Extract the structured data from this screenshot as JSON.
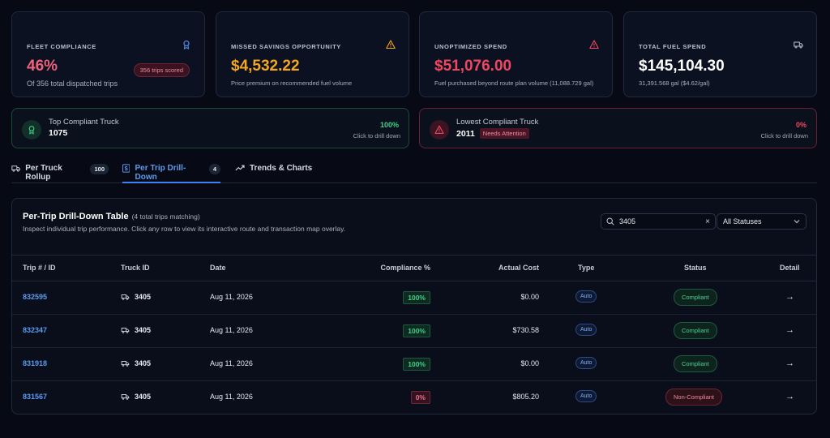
{
  "kpis": [
    {
      "title": "FLEET COMPLIANCE",
      "value": "46%",
      "value_color": "#f0617c",
      "sub": "Of 356 total dispatched trips",
      "pill": "356 trips scored",
      "icon": "award-icon",
      "icon_color": "#4f8ef0"
    },
    {
      "title": "MISSED SAVINGS OPPORTUNITY",
      "value": "$4,532.22",
      "value_color": "#f5a524",
      "sub": "Price premium on recommended fuel volume",
      "icon": "warning-icon",
      "icon_color": "#f5a524"
    },
    {
      "title": "UNOPTIMIZED SPEND",
      "value": "$51,076.00",
      "value_color": "#f04660",
      "sub": "Fuel purchased beyond route plan volume (11,088.729 gal)",
      "icon": "alert-icon",
      "icon_color": "#f04660"
    },
    {
      "title": "TOTAL FUEL SPEND",
      "value": "$145,104.30",
      "value_color": "#ffffff",
      "sub": "31,391.568 gal ($4.62/gal)",
      "icon": "truck-icon",
      "icon_color": "#b9c0cf"
    }
  ],
  "top_truck": {
    "label": "Top Compliant Truck",
    "name": "1075",
    "pct": "100%",
    "hint": "Click to drill down"
  },
  "lowest_truck": {
    "label": "Lowest Compliant Truck",
    "name": "2011",
    "badge": "Needs Attention",
    "pct": "0%",
    "hint": "Click to drill down"
  },
  "tabs": [
    {
      "label": "Per Truck Rollup",
      "count": "100"
    },
    {
      "label": "Per Trip Drill-Down",
      "count": "4"
    },
    {
      "label": "Trends & Charts"
    }
  ],
  "panel": {
    "title": "Per-Trip Drill-Down Table",
    "count": "(4 total trips matching)",
    "description": "Inspect individual trip performance. Click any row to view its interactive route and transaction map overlay.",
    "search_value": "3405",
    "status_filter": "All Statuses"
  },
  "columns": [
    "Trip # / ID",
    "Truck ID",
    "Date",
    "Compliance %",
    "Actual Cost",
    "Type",
    "Status",
    "Detail"
  ],
  "rows": [
    {
      "trip": "832595",
      "truck": "3405",
      "date": "Aug 11, 2026",
      "compliance": "100%",
      "cost": "$0.00",
      "type": "Auto",
      "status": "Compliant"
    },
    {
      "trip": "832347",
      "truck": "3405",
      "date": "Aug 11, 2026",
      "compliance": "100%",
      "cost": "$730.58",
      "type": "Auto",
      "status": "Compliant"
    },
    {
      "trip": "831918",
      "truck": "3405",
      "date": "Aug 11, 2026",
      "compliance": "100%",
      "cost": "$0.00",
      "type": "Auto",
      "status": "Compliant"
    },
    {
      "trip": "831567",
      "truck": "3405",
      "date": "Aug 11, 2026",
      "compliance": "0%",
      "cost": "$805.20",
      "type": "Auto",
      "status": "Non-Compliant"
    }
  ]
}
